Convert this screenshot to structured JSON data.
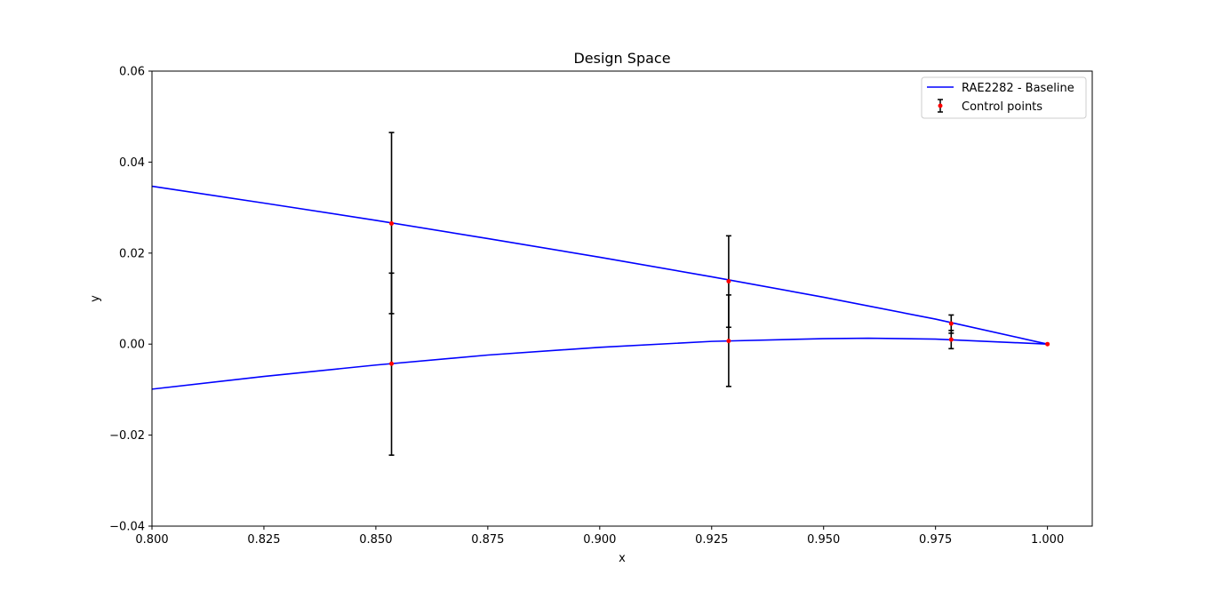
{
  "chart_data": {
    "type": "line",
    "title": "Design Space",
    "xlabel": "x",
    "ylabel": "y",
    "xlim": [
      0.8,
      1.01
    ],
    "ylim": [
      -0.04,
      0.06
    ],
    "xticks": [
      0.8,
      0.825,
      0.85,
      0.875,
      0.9,
      0.925,
      0.95,
      0.975,
      1.0
    ],
    "xtick_labels": [
      "0.800",
      "0.825",
      "0.850",
      "0.875",
      "0.900",
      "0.925",
      "0.950",
      "0.975",
      "1.000"
    ],
    "yticks": [
      -0.04,
      -0.02,
      0.0,
      0.02,
      0.04,
      0.06
    ],
    "ytick_labels": [
      "−0.04",
      "−0.02",
      "0.00",
      "0.02",
      "0.04",
      "0.06"
    ],
    "grid": false,
    "legend_position": "top-right",
    "colors": {
      "baseline": "#0000ff",
      "control_points": "#ff0000",
      "error_bars": "#000000"
    },
    "series": [
      {
        "name": "RAE2282 - Baseline",
        "kind": "line",
        "upper": {
          "x": [
            0.8,
            0.825,
            0.85,
            0.875,
            0.9,
            0.925,
            0.95,
            0.975,
            1.0
          ],
          "y": [
            0.0347,
            0.031,
            0.0272,
            0.0232,
            0.0191,
            0.0148,
            0.0103,
            0.0055,
            0.0
          ]
        },
        "lower": {
          "x": [
            0.8,
            0.825,
            0.85,
            0.875,
            0.9,
            0.925,
            0.95,
            0.96,
            0.975,
            1.0
          ],
          "y": [
            -0.0099,
            -0.0071,
            -0.0046,
            -0.0024,
            -0.0007,
            0.0006,
            0.0012,
            0.0013,
            0.0011,
            0.0
          ]
        }
      },
      {
        "name": "Control points",
        "kind": "errorbar",
        "points": [
          {
            "x": 0.8535,
            "y": 0.0265,
            "ylow": 0.0067,
            "yhigh": 0.0465
          },
          {
            "x": 0.8535,
            "y": -0.0043,
            "ylow": -0.0244,
            "yhigh": 0.0156
          },
          {
            "x": 0.9288,
            "y": 0.0138,
            "ylow": 0.0037,
            "yhigh": 0.0238
          },
          {
            "x": 0.9288,
            "y": 0.0007,
            "ylow": -0.0093,
            "yhigh": 0.0108
          },
          {
            "x": 0.9785,
            "y": 0.0045,
            "ylow": 0.0024,
            "yhigh": 0.0064
          },
          {
            "x": 0.9785,
            "y": 0.001,
            "ylow": -0.001,
            "yhigh": 0.003
          },
          {
            "x": 1.0,
            "y": 0.0,
            "ylow": 0.0,
            "yhigh": 0.0
          }
        ]
      }
    ]
  }
}
